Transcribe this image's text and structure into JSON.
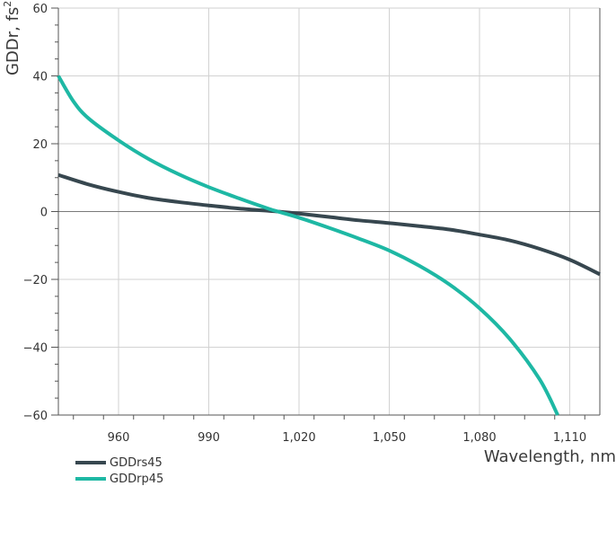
{
  "chart_data": {
    "type": "line",
    "title": "",
    "xlabel": "Wavelength, nm",
    "ylabel": "GDDr, fs",
    "ylabel_superscript": "2",
    "xlim": [
      940,
      1120
    ],
    "ylim": [
      -60,
      60
    ],
    "x_ticks": [
      960,
      990,
      1020,
      1050,
      1080,
      1110
    ],
    "x_tick_labels": [
      "960",
      "990",
      "1,020",
      "1,050",
      "1,080",
      "1,110"
    ],
    "y_ticks": [
      60,
      40,
      20,
      0,
      -20,
      -40,
      -60
    ],
    "y_tick_labels": [
      "60",
      "40",
      "20",
      "0",
      "−20",
      "−40",
      "−60"
    ],
    "grid": true,
    "legend_position": "bottom-left",
    "series": [
      {
        "name": "GDDrs45",
        "color": "#37474f",
        "x": [
          940,
          950,
          960,
          970,
          980,
          990,
          1000,
          1010,
          1013,
          1020,
          1030,
          1040,
          1050,
          1060,
          1070,
          1080,
          1090,
          1100,
          1110,
          1120
        ],
        "y": [
          10.8,
          8.0,
          5.8,
          4.0,
          2.8,
          1.8,
          0.9,
          0.2,
          0.0,
          -0.6,
          -1.6,
          -2.6,
          -3.4,
          -4.3,
          -5.3,
          -6.8,
          -8.5,
          -11.0,
          -14.2,
          -18.5
        ]
      },
      {
        "name": "GDDrp45",
        "color": "#1eb8a4",
        "x": [
          940,
          945,
          950,
          960,
          970,
          980,
          990,
          1000,
          1010,
          1013,
          1020,
          1030,
          1040,
          1050,
          1060,
          1070,
          1080,
          1090,
          1100,
          1106
        ],
        "y": [
          40.0,
          32.5,
          27.5,
          21.0,
          15.5,
          11.0,
          7.2,
          3.9,
          0.8,
          0.0,
          -1.8,
          -4.8,
          -8.0,
          -11.5,
          -16.0,
          -21.5,
          -28.5,
          -37.5,
          -49.5,
          -60.0
        ]
      }
    ]
  }
}
